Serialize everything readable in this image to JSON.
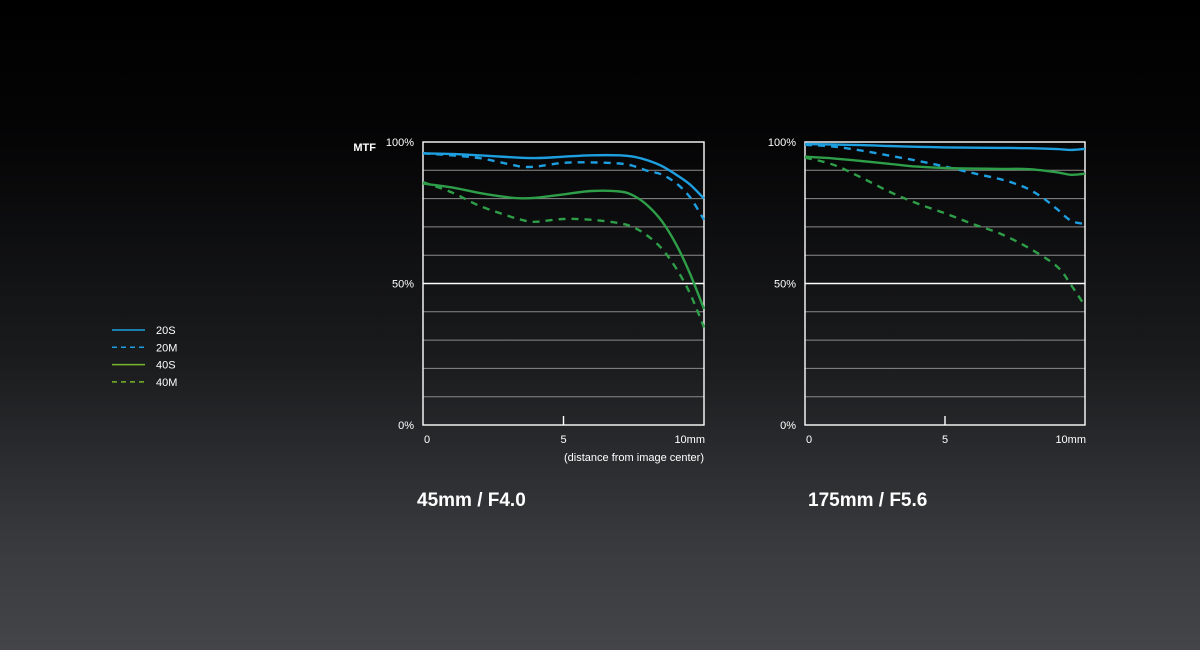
{
  "colors": {
    "blue": "#1e9fe0",
    "green": "#2e9e48",
    "legend_green": "#78b82a",
    "grid": "#8a8a8a",
    "axis": "#ffffff",
    "background_top": "#000000",
    "background_bottom": "#444548"
  },
  "legend": {
    "placement": "left",
    "items": [
      {
        "label": "20S",
        "color": "#1e9fe0",
        "dash": false
      },
      {
        "label": "20M",
        "color": "#1e9fe0",
        "dash": true
      },
      {
        "label": "40S",
        "color": "#78b82a",
        "dash": false
      },
      {
        "label": "40M",
        "color": "#78b82a",
        "dash": true
      }
    ]
  },
  "chart_data": [
    {
      "type": "line",
      "title": "45mm / F4.0",
      "ylabel": "MTF",
      "xlabel": "(distance from image center)",
      "xlim": [
        0,
        10
      ],
      "ylim": [
        0,
        100
      ],
      "grid": true,
      "xticks": [
        {
          "value": 0,
          "label": "0"
        },
        {
          "value": 5,
          "label": "5"
        },
        {
          "value": 10,
          "label": "10mm"
        }
      ],
      "yticks": [
        {
          "value": 0,
          "label": "0%"
        },
        {
          "value": 50,
          "label": "50%"
        },
        {
          "value": 100,
          "label": "100%"
        }
      ],
      "series": [
        {
          "name": "20S",
          "color": "#1e9fe0",
          "dash": false,
          "x": [
            0,
            1,
            2,
            3,
            4,
            5,
            6,
            7,
            7.5,
            8,
            8.5,
            9,
            9.5,
            10
          ],
          "y": [
            96,
            95.8,
            95.3,
            94.7,
            94.3,
            94.8,
            95.3,
            95.3,
            94.8,
            93.5,
            91.5,
            88.5,
            85,
            80
          ]
        },
        {
          "name": "20M",
          "color": "#1e9fe0",
          "dash": true,
          "x": [
            0,
            1,
            2,
            3,
            3.5,
            4,
            5,
            6,
            7,
            7.5,
            8,
            8.5,
            9,
            9.5,
            10
          ],
          "y": [
            96,
            95.3,
            94.3,
            92.3,
            91.3,
            91.3,
            92.6,
            92.8,
            92.4,
            91.5,
            89.8,
            88.5,
            85.5,
            80.5,
            72.5
          ]
        },
        {
          "name": "40S",
          "color": "#2e9e48",
          "dash": false,
          "x": [
            0,
            1,
            2,
            3,
            3.5,
            4,
            5,
            6,
            7,
            7.5,
            8,
            8.5,
            9,
            9.5,
            10
          ],
          "y": [
            85.3,
            84,
            82,
            80.5,
            80.1,
            80.3,
            81.5,
            82.7,
            82.5,
            81,
            77.5,
            72,
            64,
            53.5,
            41
          ]
        },
        {
          "name": "40M",
          "color": "#2e9e48",
          "dash": true,
          "x": [
            0,
            1,
            2,
            3,
            3.5,
            4,
            5,
            6,
            7,
            7.5,
            8,
            8.5,
            9,
            9.5,
            10
          ],
          "y": [
            85.8,
            82.3,
            77.5,
            74,
            72.5,
            71.8,
            72.8,
            72.5,
            71.3,
            69.8,
            66.8,
            62.3,
            55.5,
            46.5,
            34.5
          ]
        }
      ]
    },
    {
      "type": "line",
      "title": "175mm / F5.6",
      "ylabel": "",
      "xlabel": "",
      "xlim": [
        0,
        10
      ],
      "ylim": [
        0,
        100
      ],
      "grid": true,
      "xticks": [
        {
          "value": 0,
          "label": "0"
        },
        {
          "value": 5,
          "label": "5"
        },
        {
          "value": 10,
          "label": "10mm"
        }
      ],
      "yticks": [
        {
          "value": 0,
          "label": "0%"
        },
        {
          "value": 50,
          "label": "50%"
        },
        {
          "value": 100,
          "label": "100%"
        }
      ],
      "series": [
        {
          "name": "20S",
          "color": "#1e9fe0",
          "dash": false,
          "x": [
            0,
            1,
            2,
            3,
            4,
            5,
            6,
            7,
            8,
            9,
            9.5,
            10
          ],
          "y": [
            99.3,
            99.1,
            98.9,
            98.6,
            98.3,
            98.1,
            98,
            97.9,
            97.8,
            97.5,
            97.2,
            97.6
          ]
        },
        {
          "name": "20M",
          "color": "#1e9fe0",
          "dash": true,
          "x": [
            0,
            1,
            2,
            3,
            4,
            5,
            6,
            7,
            7.5,
            8,
            8.5,
            9,
            9.5,
            10
          ],
          "y": [
            99,
            98.4,
            97,
            95.2,
            93.4,
            91.3,
            89,
            86.8,
            85.3,
            83.3,
            80.2,
            76.3,
            72.2,
            71
          ]
        },
        {
          "name": "40S",
          "color": "#2e9e48",
          "dash": false,
          "x": [
            0,
            1,
            2,
            3,
            4,
            5,
            6,
            7,
            8,
            9,
            9.5,
            10
          ],
          "y": [
            94.8,
            94.2,
            93.3,
            92.3,
            91.3,
            90.8,
            90.6,
            90.5,
            90.4,
            89.3,
            88.4,
            88.8
          ]
        },
        {
          "name": "40M",
          "color": "#2e9e48",
          "dash": true,
          "x": [
            0,
            1,
            2,
            3,
            4,
            5,
            6,
            7,
            8,
            9,
            9.5,
            10
          ],
          "y": [
            94.5,
            92,
            87.5,
            82.5,
            78.3,
            74.8,
            71,
            67.5,
            62.5,
            56,
            49.5,
            42
          ]
        }
      ]
    }
  ]
}
